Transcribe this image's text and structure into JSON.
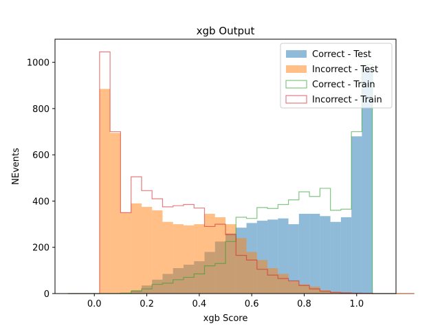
{
  "chart_data": {
    "type": "histogram",
    "title": "xgb Output",
    "xlabel": "xgb Score",
    "ylabel": "NEvents",
    "xlim": [
      -0.15,
      1.15
    ],
    "ylim": [
      0,
      1100
    ],
    "xticks": [
      "0.0",
      "0.2",
      "0.4",
      "0.6",
      "0.8",
      "1.0"
    ],
    "yticks": [
      "0",
      "200",
      "400",
      "600",
      "800",
      "1000"
    ],
    "bin_start": -0.1,
    "bin_width": 0.04,
    "legend_position": "top-right",
    "series": [
      {
        "name": "Correct - Test",
        "style": "filled",
        "color": "#1f77b4",
        "values": [
          0,
          0,
          0,
          0,
          0,
          2,
          15,
          35,
          60,
          85,
          110,
          125,
          140,
          180,
          225,
          260,
          285,
          305,
          315,
          320,
          325,
          300,
          345,
          345,
          335,
          310,
          330,
          680,
          975,
          0,
          0,
          0,
          0
        ]
      },
      {
        "name": "Incorrect - Test",
        "style": "filled",
        "color": "#ff7f0e",
        "values": [
          0,
          0,
          0,
          885,
          695,
          350,
          390,
          375,
          360,
          310,
          300,
          295,
          300,
          345,
          330,
          300,
          240,
          180,
          145,
          110,
          85,
          55,
          40,
          30,
          15,
          8,
          5,
          2,
          1,
          0,
          0,
          0,
          0
        ]
      },
      {
        "name": "Correct - Train",
        "style": "step",
        "color": "#2ca02c",
        "values": [
          0,
          0,
          0,
          0,
          0,
          2,
          10,
          20,
          40,
          45,
          60,
          70,
          85,
          120,
          130,
          225,
          330,
          325,
          372,
          368,
          385,
          405,
          440,
          420,
          455,
          360,
          365,
          700,
          990,
          0,
          0,
          0,
          0
        ]
      },
      {
        "name": "Incorrect - Train",
        "style": "step",
        "color": "#d62728",
        "values": [
          0,
          0,
          0,
          1045,
          700,
          350,
          505,
          445,
          410,
          375,
          380,
          385,
          370,
          290,
          300,
          255,
          165,
          145,
          105,
          80,
          65,
          55,
          35,
          20,
          10,
          5,
          3,
          2,
          1,
          0,
          0,
          0,
          0
        ]
      }
    ]
  }
}
